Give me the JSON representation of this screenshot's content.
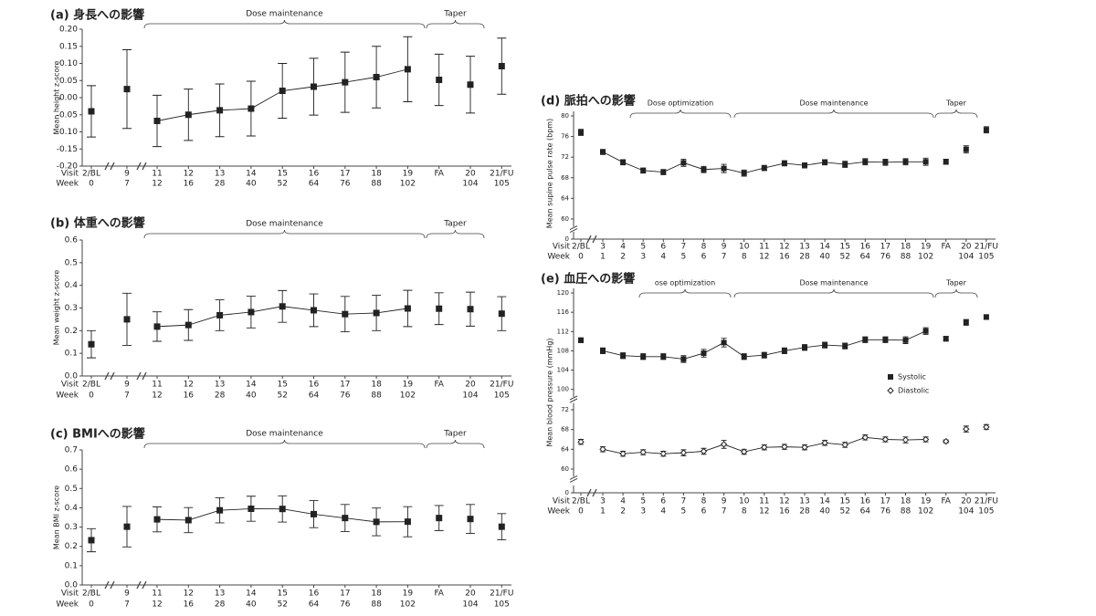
{
  "chart_data": [
    {
      "type": "line",
      "title": "(a)  身長への影響",
      "ylabel": "Mean height z-score",
      "row_labels": [
        "Visit",
        "Week"
      ],
      "categories": [
        "2/BL",
        "9",
        "11",
        "12",
        "13",
        "14",
        "15",
        "16",
        "17",
        "18",
        "19",
        "FA",
        "20",
        "21/FU"
      ],
      "weeks": [
        "0",
        "7",
        "12",
        "16",
        "28",
        "40",
        "52",
        "64",
        "76",
        "88",
        "102",
        null,
        "104",
        "105"
      ],
      "annotations": [
        "Dose maintenance",
        "Taper"
      ],
      "ylim": [
        -0.2,
        0.2
      ],
      "yticks": [
        {
          "value": -0.2,
          "label": "-0.20"
        },
        -0.15,
        {
          "value": -0.1,
          "label": "-0.10"
        },
        -0.05,
        {
          "value": 0,
          "label": "0.00"
        },
        0.05,
        {
          "value": 0.1,
          "label": "0.10"
        },
        0.15,
        {
          "value": 0.2,
          "label": "0.20"
        }
      ],
      "series": [
        {
          "color": "#222222",
          "marker": "square",
          "values": [
            -0.04,
            0.025,
            -0.068,
            -0.05,
            -0.037,
            -0.032,
            0.02,
            0.032,
            0.045,
            0.06,
            0.083,
            0.052,
            0.038,
            0.092
          ],
          "errors": [
            0.075,
            0.115,
            0.075,
            0.075,
            0.077,
            0.08,
            0.08,
            0.083,
            0.088,
            0.09,
            0.095,
            0.075,
            0.083,
            0.082
          ]
        }
      ]
    },
    {
      "type": "line",
      "title": "(b)  体重への影響",
      "ylabel": "Mean weight z-score",
      "row_labels": [
        "Visit",
        "Week"
      ],
      "categories": [
        "2/BL",
        "9",
        "11",
        "12",
        "13",
        "14",
        "15",
        "16",
        "17",
        "18",
        "19",
        "FA",
        "20",
        "21/FU"
      ],
      "weeks": [
        "0",
        "7",
        "12",
        "16",
        "28",
        "40",
        "52",
        "64",
        "76",
        "88",
        "102",
        null,
        "104",
        "105"
      ],
      "annotations": [
        "Dose maintenance",
        "Taper"
      ],
      "ylim": [
        0,
        0.6
      ],
      "yticks": [
        {
          "value": 0,
          "label": "0.0"
        },
        0.1,
        0.2,
        0.3,
        0.4,
        0.5,
        0.6
      ],
      "series": [
        {
          "color": "#222222",
          "marker": "square",
          "values": [
            0.14,
            0.25,
            0.218,
            0.225,
            0.268,
            0.282,
            0.307,
            0.29,
            0.273,
            0.278,
            0.298,
            0.297,
            0.295,
            0.275
          ],
          "errors": [
            0.06,
            0.115,
            0.065,
            0.068,
            0.068,
            0.07,
            0.07,
            0.072,
            0.078,
            0.078,
            0.08,
            0.07,
            0.075,
            0.075
          ]
        }
      ]
    },
    {
      "type": "line",
      "title": "(c)  BMIへの影響",
      "ylabel": "Mean BMI z-score",
      "row_labels": [
        "Visit",
        "Week"
      ],
      "categories": [
        "2/BL",
        "9",
        "11",
        "12",
        "13",
        "14",
        "15",
        "16",
        "17",
        "18",
        "19",
        "FA",
        "20",
        "21/FU"
      ],
      "weeks": [
        "0",
        "7",
        "12",
        "16",
        "28",
        "40",
        "52",
        "64",
        "76",
        "88",
        "102",
        null,
        "104",
        "105"
      ],
      "annotations": [
        "Dose maintenance",
        "Taper"
      ],
      "ylim": [
        0,
        0.7
      ],
      "yticks": [
        {
          "value": 0,
          "label": "0.0"
        },
        0.1,
        0.2,
        0.3,
        0.4,
        0.5,
        0.6,
        0.7
      ],
      "series": [
        {
          "color": "#222222",
          "marker": "square",
          "values": [
            0.232,
            0.302,
            0.34,
            0.336,
            0.387,
            0.395,
            0.394,
            0.367,
            0.347,
            0.327,
            0.328,
            0.347,
            0.342,
            0.302
          ],
          "errors": [
            0.06,
            0.105,
            0.065,
            0.065,
            0.065,
            0.065,
            0.068,
            0.07,
            0.07,
            0.072,
            0.078,
            0.065,
            0.075,
            0.068
          ]
        }
      ]
    },
    {
      "type": "line",
      "title": "(d)  脈拍への影響",
      "ylabel": "Mean supine pulse rate (bpm)",
      "row_labels": [
        "Visit",
        "Week"
      ],
      "categories": [
        "2/BL",
        "3",
        "4",
        "5",
        "6",
        "7",
        "8",
        "9",
        "10",
        "11",
        "12",
        "13",
        "14",
        "15",
        "16",
        "17",
        "18",
        "19",
        "FA",
        "20",
        "21/FU"
      ],
      "weeks": [
        "0",
        "1",
        "2",
        "3",
        "4",
        "5",
        "6",
        "7",
        "8",
        "12",
        "16",
        "28",
        "40",
        "52",
        "64",
        "76",
        "88",
        "102",
        null,
        "104",
        "105"
      ],
      "annotations": [
        "Dose optimization",
        "Dose maintenance",
        "Taper"
      ],
      "ylim": [
        59,
        80
      ],
      "yticks": [
        60,
        64,
        68,
        72,
        76,
        80
      ],
      "break_tick": 0,
      "series": [
        {
          "color": "#222222",
          "marker": "square",
          "values": [
            76.8,
            73.0,
            71.0,
            69.4,
            69.1,
            70.9,
            69.6,
            69.8,
            68.9,
            69.9,
            70.8,
            70.4,
            71.0,
            70.6,
            71.1,
            71.0,
            71.1,
            71.1,
            71.1,
            73.5,
            77.3
          ],
          "errors": [
            0.6,
            0.5,
            0.5,
            0.5,
            0.5,
            0.7,
            0.6,
            0.8,
            0.6,
            0.5,
            0.5,
            0.5,
            0.5,
            0.6,
            0.6,
            0.6,
            0.6,
            0.7,
            0.5,
            0.7,
            0.6
          ]
        }
      ]
    },
    {
      "type": "line",
      "title": "(e)  血圧への影響",
      "ylabel": "Mean blood pressure (mmHg)",
      "row_labels": [
        "Visit",
        "Week"
      ],
      "categories": [
        "2/BL",
        "3",
        "4",
        "5",
        "6",
        "7",
        "8",
        "9",
        "10",
        "11",
        "12",
        "13",
        "14",
        "15",
        "16",
        "17",
        "18",
        "19",
        "FA",
        "20",
        "21/FU"
      ],
      "weeks": [
        "0",
        "1",
        "2",
        "3",
        "4",
        "5",
        "6",
        "7",
        "8",
        "12",
        "16",
        "28",
        "40",
        "52",
        "64",
        "76",
        "88",
        "102",
        null,
        "104",
        "105"
      ],
      "annotations": [
        "ose optimization",
        "Dose maintenance",
        "Taper"
      ],
      "ylim": [
        99,
        120
      ],
      "yticks": [
        100,
        104,
        108,
        112,
        116,
        120
      ],
      "ylim_lower": [
        59,
        73
      ],
      "yticks_lower": [
        60,
        64,
        68,
        72
      ],
      "break_tick": 0,
      "series": [
        {
          "name": "Systolic",
          "color": "#222222",
          "marker": "square",
          "values": [
            110.2,
            108.0,
            107.0,
            106.8,
            106.8,
            106.3,
            107.5,
            109.7,
            106.8,
            107.1,
            108.0,
            108.7,
            109.2,
            109.0,
            110.3,
            110.3,
            110.2,
            112.1,
            110.5,
            113.9,
            115.0
          ],
          "errors": [
            0.5,
            0.6,
            0.6,
            0.6,
            0.6,
            0.7,
            0.8,
            0.9,
            0.6,
            0.6,
            0.6,
            0.6,
            0.6,
            0.6,
            0.6,
            0.6,
            0.7,
            0.7,
            0.5,
            0.6,
            0.5
          ]
        },
        {
          "name": "Diastolic",
          "color": "#222222",
          "marker": "diamond",
          "values": [
            65.5,
            64.0,
            63.1,
            63.4,
            63.1,
            63.3,
            63.6,
            65.0,
            63.5,
            64.4,
            64.5,
            64.4,
            65.3,
            64.9,
            66.4,
            66.0,
            65.9,
            66.0,
            65.6,
            68.1,
            68.5
          ],
          "errors": [
            0.5,
            0.5,
            0.5,
            0.5,
            0.5,
            0.6,
            0.6,
            0.8,
            0.5,
            0.5,
            0.5,
            0.5,
            0.5,
            0.5,
            0.5,
            0.5,
            0.6,
            0.5,
            0.3,
            0.6,
            0.5
          ]
        }
      ]
    }
  ]
}
